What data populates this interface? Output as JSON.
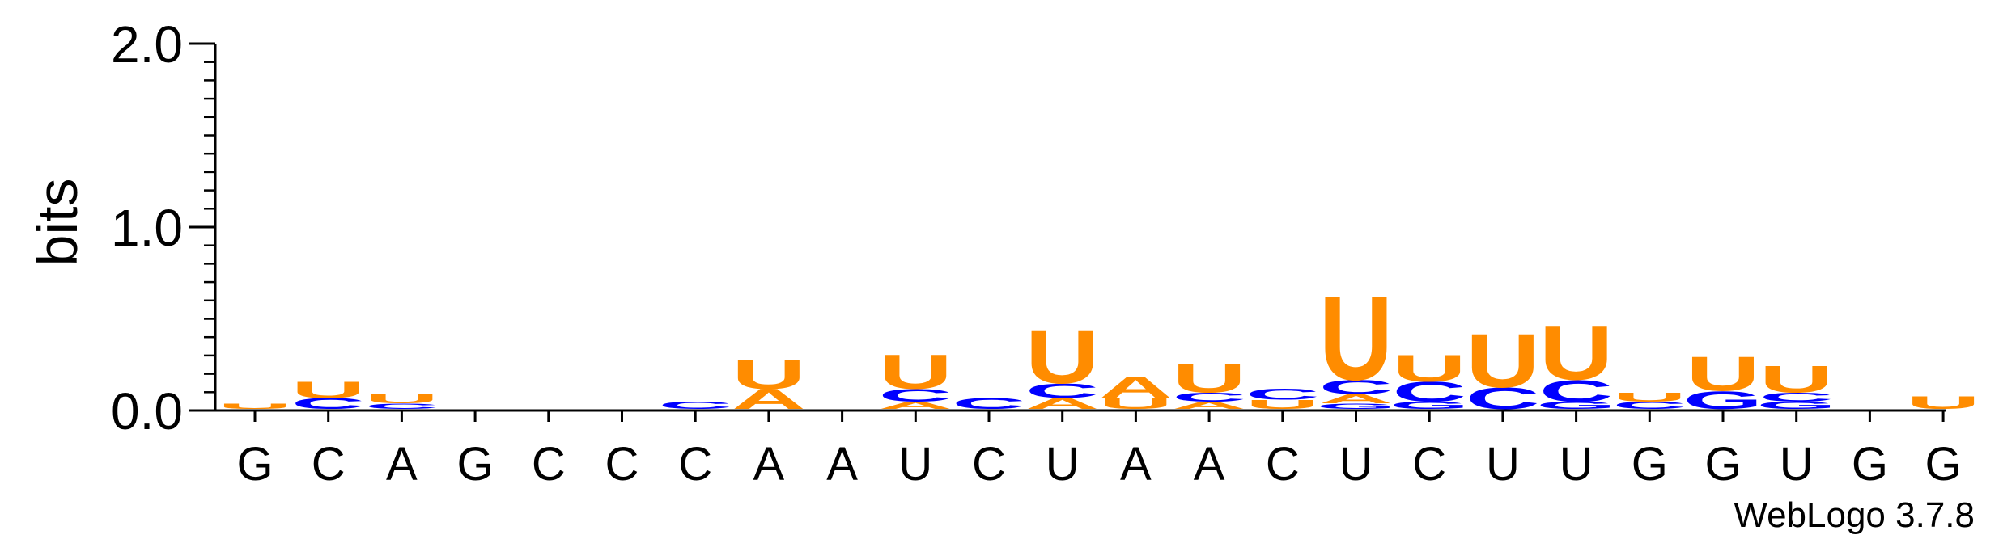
{
  "chart_data": {
    "type": "sequence-logo",
    "ylabel": "bits",
    "ylim": [
      0,
      2.0
    ],
    "yticks": [
      "0.0",
      "1.0",
      "2.0"
    ],
    "credit": "WebLogo 3.7.8",
    "colors": {
      "A": "#ff8c00",
      "U": "#ff8c00",
      "C": "#0000ff",
      "G": "#0000ff"
    },
    "positions": [
      {
        "label": "G",
        "stack": [
          {
            "letter": "U",
            "bits": 0.03
          }
        ]
      },
      {
        "label": "C",
        "stack": [
          {
            "letter": "C",
            "bits": 0.06
          },
          {
            "letter": "U",
            "bits": 0.09
          }
        ]
      },
      {
        "label": "A",
        "stack": [
          {
            "letter": "C",
            "bits": 0.03
          },
          {
            "letter": "U",
            "bits": 0.05
          }
        ]
      },
      {
        "label": "G",
        "stack": []
      },
      {
        "label": "C",
        "stack": []
      },
      {
        "label": "C",
        "stack": []
      },
      {
        "label": "C",
        "stack": [
          {
            "letter": "C",
            "bits": 0.04
          }
        ]
      },
      {
        "label": "A",
        "stack": [
          {
            "letter": "A",
            "bits": 0.11
          },
          {
            "letter": "U",
            "bits": 0.16
          }
        ]
      },
      {
        "label": "A",
        "stack": []
      },
      {
        "label": "U",
        "stack": [
          {
            "letter": "A",
            "bits": 0.04
          },
          {
            "letter": "C",
            "bits": 0.07
          },
          {
            "letter": "U",
            "bits": 0.19
          }
        ]
      },
      {
        "label": "C",
        "stack": [
          {
            "letter": "C",
            "bits": 0.06
          }
        ]
      },
      {
        "label": "U",
        "stack": [
          {
            "letter": "A",
            "bits": 0.06
          },
          {
            "letter": "C",
            "bits": 0.08
          },
          {
            "letter": "U",
            "bits": 0.3
          }
        ]
      },
      {
        "label": "A",
        "stack": [
          {
            "letter": "U",
            "bits": 0.06
          },
          {
            "letter": "A",
            "bits": 0.12
          }
        ]
      },
      {
        "label": "A",
        "stack": [
          {
            "letter": "A",
            "bits": 0.04
          },
          {
            "letter": "C",
            "bits": 0.05
          },
          {
            "letter": "U",
            "bits": 0.16
          }
        ]
      },
      {
        "label": "C",
        "stack": [
          {
            "letter": "U",
            "bits": 0.05
          },
          {
            "letter": "C",
            "bits": 0.06
          }
        ]
      },
      {
        "label": "U",
        "stack": [
          {
            "letter": "G",
            "bits": 0.03
          },
          {
            "letter": "A",
            "bits": 0.05
          },
          {
            "letter": "C",
            "bits": 0.08
          },
          {
            "letter": "U",
            "bits": 0.47
          }
        ]
      },
      {
        "label": "C",
        "stack": [
          {
            "letter": "G",
            "bits": 0.04
          },
          {
            "letter": "C",
            "bits": 0.11
          },
          {
            "letter": "U",
            "bits": 0.15
          }
        ]
      },
      {
        "label": "U",
        "stack": [
          {
            "letter": "C",
            "bits": 0.12
          },
          {
            "letter": "U",
            "bits": 0.3
          }
        ]
      },
      {
        "label": "U",
        "stack": [
          {
            "letter": "G",
            "bits": 0.04
          },
          {
            "letter": "C",
            "bits": 0.12
          },
          {
            "letter": "U",
            "bits": 0.3
          }
        ]
      },
      {
        "label": "G",
        "stack": [
          {
            "letter": "C",
            "bits": 0.04
          },
          {
            "letter": "U",
            "bits": 0.05
          }
        ]
      },
      {
        "label": "G",
        "stack": [
          {
            "letter": "G",
            "bits": 0.1
          },
          {
            "letter": "U",
            "bits": 0.19
          }
        ]
      },
      {
        "label": "U",
        "stack": [
          {
            "letter": "G",
            "bits": 0.04
          },
          {
            "letter": "C",
            "bits": 0.05
          },
          {
            "letter": "U",
            "bits": 0.15
          }
        ]
      },
      {
        "label": "G",
        "stack": []
      },
      {
        "label": "G",
        "stack": [
          {
            "letter": "U",
            "bits": 0.07
          }
        ]
      }
    ]
  }
}
